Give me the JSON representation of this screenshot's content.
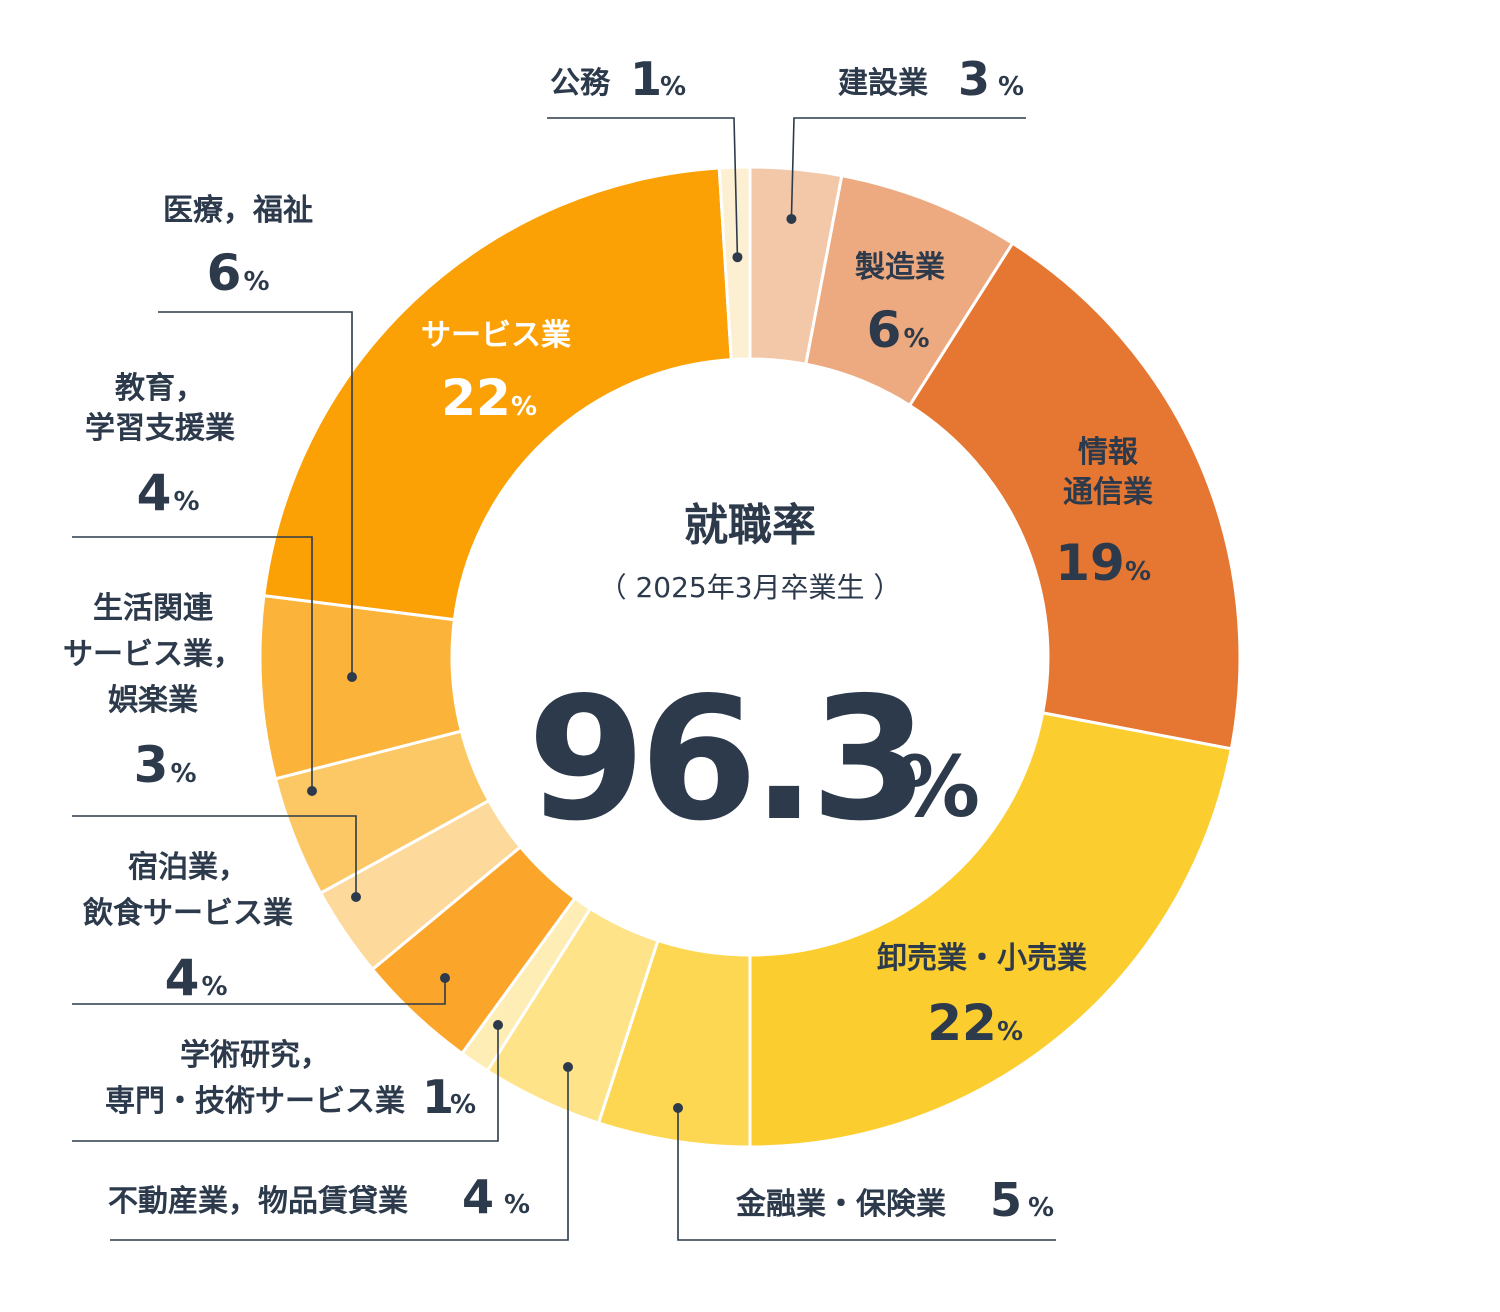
{
  "chart_data": {
    "type": "pie",
    "center": {
      "title": "就職率",
      "subtitle": "（ 2025年3月卒業生 ）",
      "rate": "96.3",
      "unit": "%"
    },
    "unit": "%",
    "slices": [
      {
        "id": "kensetsu",
        "label": "建設業",
        "value": 3,
        "color": "#F3C8A9"
      },
      {
        "id": "seizou",
        "label": "製造業",
        "value": 6,
        "color": "#EDAA80"
      },
      {
        "id": "joho",
        "label": "情報通信業",
        "value": 19,
        "color": "#E57733"
      },
      {
        "id": "oroshi",
        "label": "卸売業・小売業",
        "value": 22,
        "color": "#FCCD2E"
      },
      {
        "id": "kinyu",
        "label": "金融業・保険業",
        "value": 5,
        "color": "#FDD752"
      },
      {
        "id": "fudosan",
        "label": "不動産業，物品賃貸業",
        "value": 4,
        "color": "#FEE388"
      },
      {
        "id": "gakujutsu",
        "label": "学術研究，専門・技術サービス業",
        "value": 1,
        "color": "#FEEDB4"
      },
      {
        "id": "shukuhaku",
        "label": "宿泊業，飲食サービス業",
        "value": 4,
        "color": "#FBA52A"
      },
      {
        "id": "seikatsu",
        "label": "生活関連サービス業，娯楽業",
        "value": 3,
        "color": "#FDDA9C"
      },
      {
        "id": "kyoiku",
        "label": "教育，学習支援業",
        "value": 4,
        "color": "#FCC765"
      },
      {
        "id": "iryo",
        "label": "医療，福祉",
        "value": 6,
        "color": "#FBB33A"
      },
      {
        "id": "service",
        "label": "サービス業",
        "value": 22,
        "color": "#FCA105"
      },
      {
        "id": "koumu",
        "label": "公務",
        "value": 1,
        "color": "#FDEFD2"
      }
    ]
  },
  "labels": {
    "kensetsu": {
      "lines": [
        "建設業"
      ],
      "value": "3"
    },
    "seizou": {
      "lines": [
        "製造業"
      ],
      "value": "6"
    },
    "joho": {
      "lines": [
        "情報",
        "通信業"
      ],
      "value": "19"
    },
    "oroshi": {
      "lines": [
        "卸売業・小売業"
      ],
      "value": "22"
    },
    "kinyu": {
      "lines": [
        "金融業・保険業"
      ],
      "value": "5"
    },
    "fudosan": {
      "lines": [
        "不動産業，物品賃貸業"
      ],
      "value": "4"
    },
    "gakujutsu": {
      "lines": [
        "学術研究，",
        "専門・技術サービス業"
      ],
      "value": "1"
    },
    "shukuhaku": {
      "lines": [
        "宿泊業，",
        "飲食サービス業"
      ],
      "value": "4"
    },
    "seikatsu": {
      "lines": [
        "生活関連",
        "サービス業，",
        "娯楽業"
      ],
      "value": "3"
    },
    "kyoiku": {
      "lines": [
        "教育，",
        "学習支援業"
      ],
      "value": "4"
    },
    "iryo": {
      "lines": [
        "医療，福祉"
      ],
      "value": "6"
    },
    "service": {
      "lines": [
        "サービス業"
      ],
      "value": "22"
    },
    "koumu": {
      "lines": [
        "公務"
      ],
      "value": "1"
    }
  }
}
